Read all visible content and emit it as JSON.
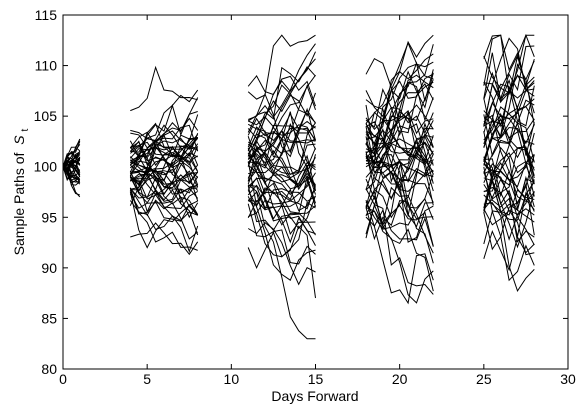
{
  "chart_data": {
    "type": "line",
    "title": "",
    "xlabel": "Days Forward",
    "ylabel_main": "Sample Paths of",
    "ylabel_symbol": "S",
    "ylabel_subscript": "t",
    "xlim": [
      0,
      30
    ],
    "ylim": [
      80,
      115
    ],
    "grid": false,
    "legend": "none",
    "line_color": "#000000",
    "xticks": [
      "0",
      "5",
      "10",
      "15",
      "20",
      "25",
      "30"
    ],
    "yticks": [
      "80",
      "85",
      "90",
      "95",
      "100",
      "105",
      "110",
      "115"
    ],
    "windows": [
      {
        "x": [
          0,
          0.25,
          0.5,
          0.75,
          1
        ],
        "start": 100,
        "spread": 0.9,
        "count": 40
      },
      {
        "x": [
          4,
          4.5,
          5,
          5.5,
          6,
          6.5,
          7,
          7.5,
          8
        ],
        "start": 100,
        "spread": 1.6,
        "count": 50
      },
      {
        "x": [
          11,
          11.5,
          12,
          12.5,
          13,
          13.5,
          14,
          14.5,
          15
        ],
        "start": 100,
        "spread": 2.2,
        "count": 50
      },
      {
        "x": [
          18,
          18.5,
          19,
          19.5,
          20,
          20.5,
          21,
          21.5,
          22
        ],
        "start": 100,
        "spread": 2.8,
        "count": 50
      },
      {
        "x": [
          25,
          25.5,
          26,
          26.5,
          27,
          27.5,
          28
        ],
        "start": 100,
        "spread": 3.2,
        "count": 50
      }
    ]
  }
}
